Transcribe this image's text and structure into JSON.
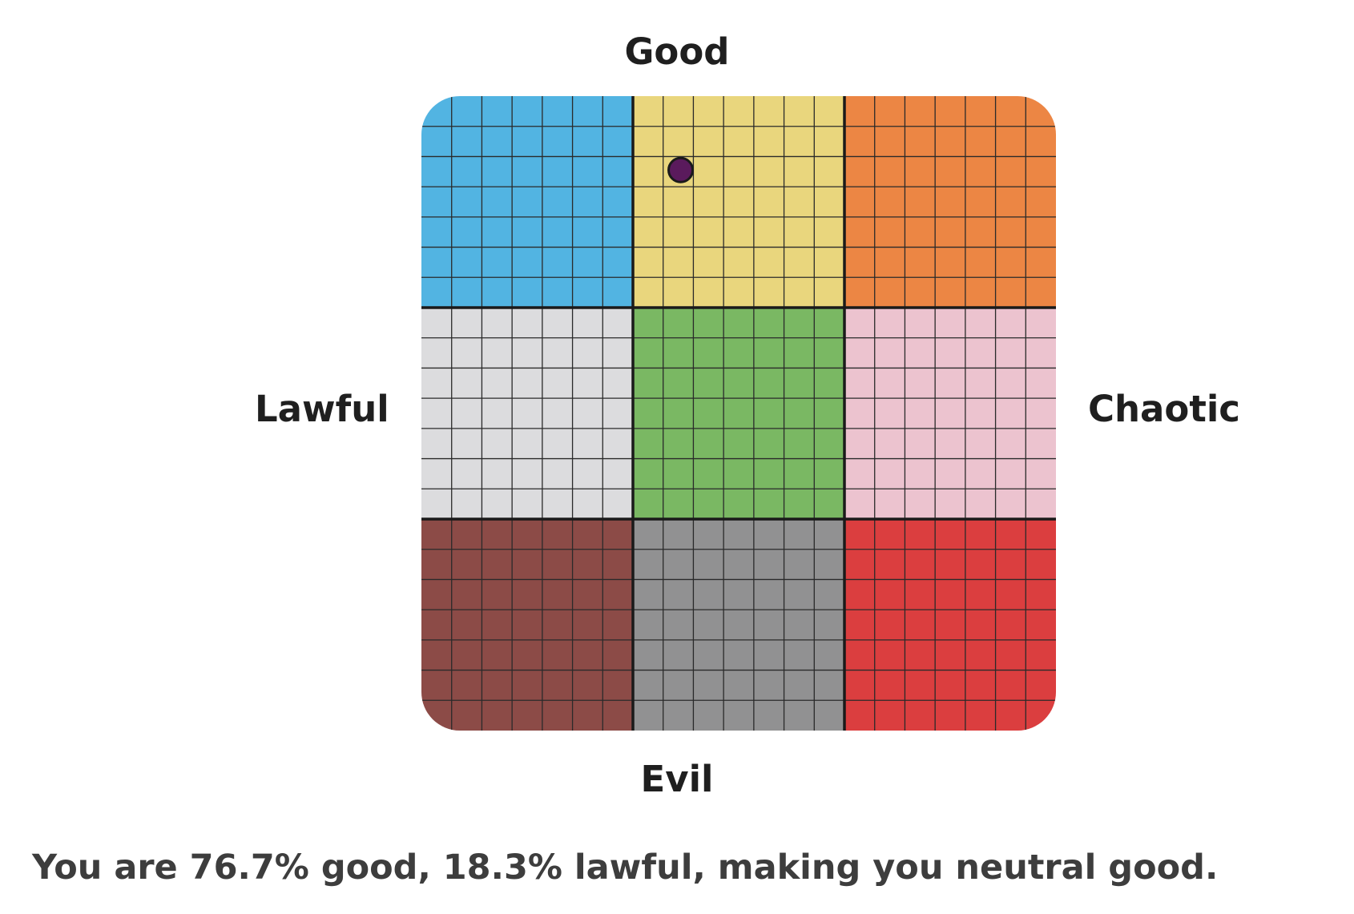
{
  "chart_data": {
    "type": "scatter",
    "axis_labels": {
      "top": "Good",
      "bottom": "Evil",
      "left": "Lawful",
      "right": "Chaotic"
    },
    "grid": true,
    "cells": [
      {
        "row": 0,
        "col": 0,
        "color": "#52b4e2"
      },
      {
        "row": 0,
        "col": 1,
        "color": "#e9d67d"
      },
      {
        "row": 0,
        "col": 2,
        "color": "#ec8644"
      },
      {
        "row": 1,
        "col": 0,
        "color": "#dcdcde"
      },
      {
        "row": 1,
        "col": 1,
        "color": "#7ab863"
      },
      {
        "row": 1,
        "col": 2,
        "color": "#ecc3cf"
      },
      {
        "row": 2,
        "col": 0,
        "color": "#8c4b47"
      },
      {
        "row": 2,
        "col": 1,
        "color": "#919192"
      },
      {
        "row": 2,
        "col": 2,
        "color": "#db3e3f"
      }
    ],
    "subdivisions": 7,
    "point": {
      "good_pct": 76.7,
      "lawful_pct": 18.3,
      "color": "#5a1a5c"
    }
  },
  "result_text": "You are 76.7% good, 18.3% lawful, making you neutral good."
}
